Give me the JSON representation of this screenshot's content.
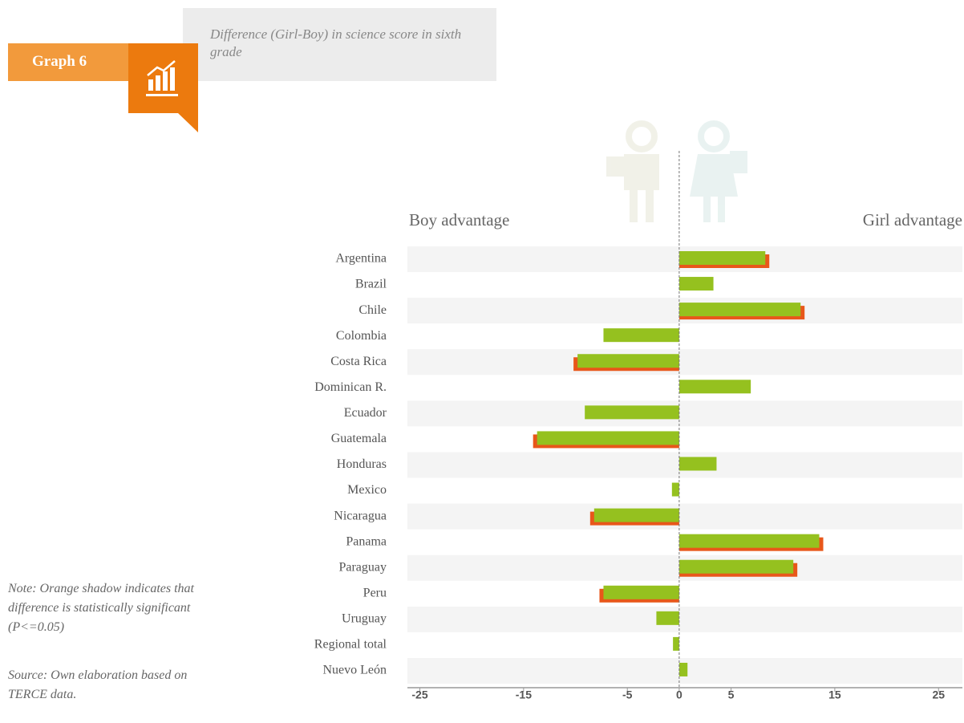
{
  "header": {
    "label": "Graph 6",
    "subtitle": "Difference (Girl-Boy) in science score in sixth grade"
  },
  "notes": {
    "note": "Note: Orange shadow indicates that difference is statistically significant (P<=0.05)",
    "source": "Source: Own elaboration based on TERCE data."
  },
  "chart_data": {
    "type": "bar",
    "orientation": "horizontal",
    "left_label": "Boy advantage",
    "right_label": "Girl advantage",
    "categories": [
      "Argentina",
      "Brazil",
      "Chile",
      "Colombia",
      "Costa Rica",
      "Dominican R.",
      "Ecuador",
      "Guatemala",
      "Honduras",
      "Mexico",
      "Nicaragua",
      "Panama",
      "Paraguay",
      "Peru",
      "Uruguay",
      "Regional total",
      "Nuevo León"
    ],
    "values": [
      8.3,
      3.3,
      11.7,
      -7.3,
      -9.8,
      6.9,
      -9.1,
      -13.7,
      3.6,
      -0.7,
      -8.2,
      13.5,
      11.0,
      -7.3,
      -2.2,
      -0.6,
      0.8
    ],
    "significant": [
      true,
      false,
      true,
      false,
      true,
      false,
      false,
      true,
      false,
      false,
      true,
      true,
      true,
      true,
      false,
      false,
      false
    ],
    "color": "#95c11f",
    "shadow_color": "#e8571a",
    "xlim": [
      -26.2,
      27.3
    ],
    "xticks": [
      -25,
      -15,
      -5,
      0,
      5,
      15,
      25
    ]
  }
}
